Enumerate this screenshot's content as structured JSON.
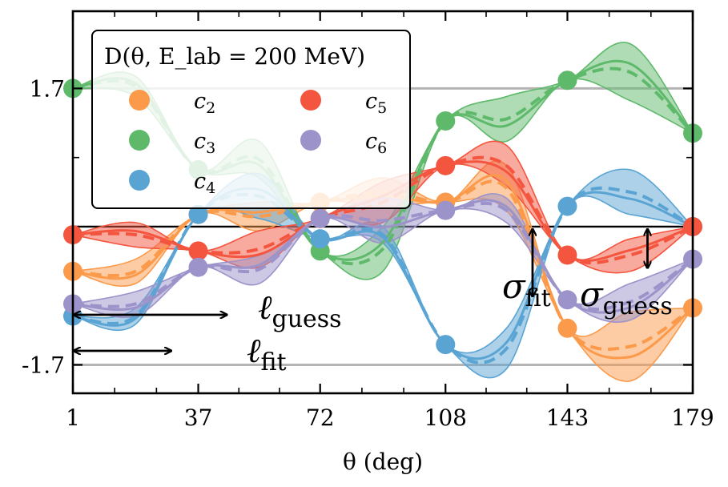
{
  "chart_data": {
    "type": "line",
    "title": "",
    "legend_title": "D(θ, E_lab = 200 MeV)",
    "xlabel": "θ (deg)",
    "ylabel": "",
    "xlim": [
      1,
      179
    ],
    "ylim": [
      -2.05,
      2.65
    ],
    "x_ticks": [
      1,
      37,
      72,
      108,
      143,
      179
    ],
    "x_tick_labels": [
      "1",
      "37",
      "72",
      "108",
      "143",
      "179"
    ],
    "y_tick_labels": [
      {
        "value": 1.7,
        "label": "1.7"
      },
      {
        "value": -1.7,
        "label": "-1.7"
      }
    ],
    "minor_y_ticks": [
      0.85
    ],
    "hlines": [
      1.7,
      0.0,
      -1.7
    ],
    "x_points": [
      1,
      37,
      72,
      108,
      143,
      179
    ],
    "legend_position": "top-left",
    "series": [
      {
        "name": "c2",
        "color": "#fb9a4a",
        "points": [
          -0.55,
          0.15,
          0.3,
          0.3,
          -1.25,
          -1.0
        ],
        "mean": [
          -0.55,
          0.05,
          0.4,
          0.55,
          -1.45,
          -1.0
        ],
        "band": [
          [
            -0.7,
            -0.4
          ],
          [
            -0.05,
            0.3
          ],
          [
            0.25,
            0.6
          ],
          [
            0.2,
            0.75
          ],
          [
            -1.9,
            -1.05
          ],
          [
            -1.1,
            -0.9
          ]
        ]
      },
      {
        "name": "c3",
        "color": "#5fb96b",
        "points": [
          1.7,
          0.7,
          -0.3,
          1.3,
          1.8,
          1.15
        ],
        "mean": [
          1.7,
          0.85,
          -0.25,
          1.35,
          1.95,
          1.15
        ],
        "band": [
          [
            1.6,
            1.85
          ],
          [
            0.6,
            1.05
          ],
          [
            -0.55,
            0.0
          ],
          [
            1.05,
            1.6
          ],
          [
            1.55,
            2.25
          ],
          [
            1.1,
            1.2
          ]
        ]
      },
      {
        "name": "c4",
        "color": "#5aa4d4",
        "points": [
          -1.1,
          0.15,
          -0.15,
          -1.45,
          0.25,
          0.0
        ],
        "mean": [
          -1.1,
          0.35,
          -0.1,
          -1.5,
          0.25,
          0.0
        ],
        "band": [
          [
            -1.2,
            -1.0
          ],
          [
            0.1,
            0.65
          ],
          [
            -0.2,
            0.0
          ],
          [
            -1.75,
            -1.25
          ],
          [
            0.15,
            0.7
          ],
          [
            -0.1,
            0.1
          ]
        ]
      },
      {
        "name": "c5",
        "color": "#f4553f",
        "points": [
          -0.1,
          -0.3,
          0.1,
          0.75,
          -0.35,
          0.0
        ],
        "mean": [
          -0.1,
          -0.25,
          0.25,
          0.8,
          -0.35,
          0.0
        ],
        "band": [
          [
            -0.25,
            0.05
          ],
          [
            -0.5,
            -0.05
          ],
          [
            0.05,
            0.55
          ],
          [
            0.5,
            1.0
          ],
          [
            -0.55,
            -0.15
          ],
          [
            -0.1,
            0.1
          ]
        ]
      },
      {
        "name": "c6",
        "color": "#9b93c9",
        "points": [
          -0.95,
          -0.5,
          0.1,
          0.2,
          -0.9,
          -0.4
        ],
        "mean": [
          -0.95,
          -0.55,
          0.1,
          0.2,
          -0.95,
          -0.4
        ],
        "band": [
          [
            -1.1,
            -0.8
          ],
          [
            -0.7,
            -0.35
          ],
          [
            -0.2,
            0.35
          ],
          [
            0.05,
            0.35
          ],
          [
            -1.15,
            -0.7
          ],
          [
            -0.5,
            -0.3
          ]
        ]
      }
    ],
    "annotations": [
      {
        "text": "ℓ",
        "sub": "guess",
        "arrow": "horizontal",
        "x_range": [
          1,
          45
        ]
      },
      {
        "text": "ℓ",
        "sub": "fit",
        "arrow": "horizontal",
        "x_range": [
          1,
          29
        ]
      },
      {
        "text": "σ",
        "sub": "fit",
        "arrow": "vertical",
        "x": 133,
        "y_range": [
          -0.85,
          0.0
        ]
      },
      {
        "text": "σ",
        "sub": "guess",
        "arrow": "vertical",
        "x": 166,
        "y_range": [
          -0.5,
          0.0
        ]
      }
    ]
  }
}
